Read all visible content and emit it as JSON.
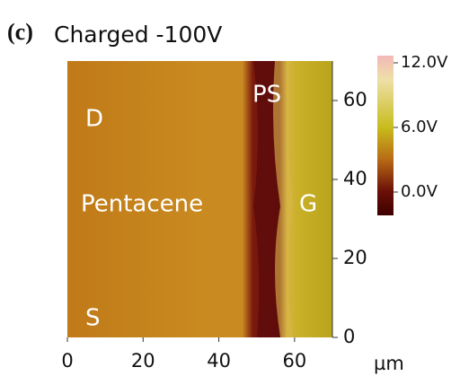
{
  "chart_data": {
    "type": "image",
    "panel_label": "(c)",
    "title": "Charged -100V",
    "xlim": [
      0,
      70
    ],
    "xticks": [
      0,
      20,
      40,
      60
    ],
    "x_unit": "µm",
    "ylim": [
      0,
      70
    ],
    "yticks": [
      0,
      20,
      40,
      60
    ],
    "clim": [
      0,
      12
    ],
    "colorbar_ticks": [
      {
        "value": 12,
        "label": "12.0V"
      },
      {
        "value": 6,
        "label": "6.0V"
      },
      {
        "value": 0,
        "label": "0.0V"
      }
    ],
    "annotations": [
      "D",
      "PS",
      "Pentacene",
      "G",
      "S"
    ]
  }
}
